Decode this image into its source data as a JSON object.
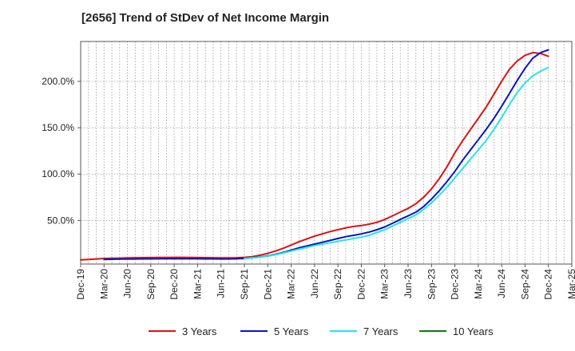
{
  "title": "[2656]  Trend of StDev of Net Income Margin",
  "colors": {
    "3y": "#dd1111",
    "5y": "#0a14c8",
    "7y": "#22e5ee",
    "10y": "#117711",
    "grid": "#999999",
    "axis": "#555555"
  },
  "chart_data": {
    "type": "line",
    "title": "[2656]  Trend of StDev of Net Income Margin",
    "xlabel": "",
    "ylabel": "",
    "x_ticks": [
      "Dec-19",
      "Mar-20",
      "Jun-20",
      "Sep-20",
      "Dec-20",
      "Mar-21",
      "Jun-21",
      "Sep-21",
      "Dec-21",
      "Mar-22",
      "Jun-22",
      "Sep-22",
      "Dec-22",
      "Mar-23",
      "Jun-23",
      "Sep-23",
      "Dec-23",
      "Mar-24",
      "Jun-24",
      "Sep-24",
      "Dec-24",
      "Mar-25"
    ],
    "y_ticks": [
      "50.0%",
      "100.0%",
      "150.0%",
      "200.0%"
    ],
    "y_tick_values": [
      50,
      100,
      150,
      200
    ],
    "ylim": [
      3,
      243
    ],
    "xlim": [
      "Dec-19",
      "Mar-25"
    ],
    "grid": true,
    "legend_position": "bottom",
    "series": [
      {
        "name": "3 Years",
        "color_key": "3y",
        "x": [
          "Dec-19",
          "Jan-20",
          "Feb-20",
          "Mar-20",
          "Apr-20",
          "May-20",
          "Jun-20",
          "Jul-20",
          "Aug-20",
          "Sep-20",
          "Oct-20",
          "Nov-20",
          "Dec-20",
          "Jan-21",
          "Feb-21",
          "Mar-21",
          "Apr-21",
          "May-21",
          "Jun-21",
          "Jul-21",
          "Aug-21",
          "Sep-21",
          "Oct-21",
          "Nov-21",
          "Dec-21",
          "Jan-22",
          "Feb-22",
          "Mar-22",
          "Apr-22",
          "May-22",
          "Jun-22",
          "Jul-22",
          "Aug-22",
          "Sep-22",
          "Oct-22",
          "Nov-22",
          "Dec-22",
          "Jan-23",
          "Feb-23",
          "Mar-23",
          "Apr-23",
          "May-23",
          "Jun-23",
          "Jul-23",
          "Aug-23",
          "Sep-23",
          "Oct-23",
          "Nov-23",
          "Dec-23",
          "Jan-24",
          "Feb-24",
          "Mar-24",
          "Apr-24",
          "May-24",
          "Jun-24",
          "Jul-24",
          "Aug-24",
          "Sep-24",
          "Oct-24",
          "Nov-24",
          "Dec-24"
        ],
        "values": [
          7.5,
          8.0,
          8.5,
          9.0,
          9.2,
          9.4,
          9.6,
          9.8,
          9.9,
          10.0,
          10.1,
          10.1,
          10.2,
          10.2,
          10.1,
          10.0,
          9.9,
          9.8,
          9.7,
          9.7,
          9.8,
          10.2,
          11.0,
          12.5,
          14.5,
          17.0,
          20.0,
          23.5,
          27.0,
          30.0,
          33.0,
          35.5,
          38.0,
          40.0,
          42.0,
          43.5,
          44.5,
          46.0,
          48.0,
          51.0,
          55.0,
          59.0,
          63.0,
          68.0,
          75.0,
          84.0,
          95.0,
          108.0,
          123.0,
          136.0,
          148.0,
          160.0,
          172.0,
          186.0,
          200.0,
          213.0,
          222.0,
          228.0,
          231.0,
          230.0,
          227.0
        ]
      },
      {
        "name": "5 Years",
        "color_key": "5y",
        "x": [
          "Mar-20",
          "Apr-20",
          "May-20",
          "Jun-20",
          "Jul-20",
          "Aug-20",
          "Sep-20",
          "Oct-20",
          "Nov-20",
          "Dec-20",
          "Jan-21",
          "Feb-21",
          "Mar-21",
          "Apr-21",
          "May-21",
          "Jun-21",
          "Jul-21",
          "Aug-21",
          "Sep-21",
          "Oct-21",
          "Nov-21",
          "Dec-21",
          "Jan-22",
          "Feb-22",
          "Mar-22",
          "Apr-22",
          "May-22",
          "Jun-22",
          "Jul-22",
          "Aug-22",
          "Sep-22",
          "Oct-22",
          "Nov-22",
          "Dec-22",
          "Jan-23",
          "Feb-23",
          "Mar-23",
          "Apr-23",
          "May-23",
          "Jun-23",
          "Jul-23",
          "Aug-23",
          "Sep-23",
          "Oct-23",
          "Nov-23",
          "Dec-23",
          "Jan-24",
          "Feb-24",
          "Mar-24",
          "Apr-24",
          "May-24",
          "Jun-24",
          "Jul-24",
          "Aug-24",
          "Sep-24",
          "Oct-24",
          "Nov-24",
          "Dec-24"
        ],
        "values": [
          8.0,
          8.2,
          8.3,
          8.4,
          8.5,
          8.6,
          8.6,
          8.7,
          8.7,
          8.7,
          8.7,
          8.7,
          8.7,
          8.6,
          8.6,
          8.5,
          8.5,
          8.7,
          9.0,
          9.6,
          10.5,
          11.8,
          13.5,
          15.5,
          18.0,
          20.5,
          22.5,
          24.5,
          26.5,
          28.5,
          30.5,
          32.5,
          34.0,
          35.5,
          37.5,
          40.0,
          43.0,
          47.0,
          51.0,
          55.0,
          59.0,
          65.0,
          73.0,
          82.0,
          92.0,
          103.0,
          115.0,
          126.0,
          137.0,
          148.0,
          160.0,
          173.0,
          187.0,
          201.0,
          214.0,
          225.0,
          231.0,
          234.0
        ]
      },
      {
        "name": "7 Years",
        "color_key": "7y",
        "x": [
          "Sep-21",
          "Oct-21",
          "Nov-21",
          "Dec-21",
          "Jan-22",
          "Feb-22",
          "Mar-22",
          "Apr-22",
          "May-22",
          "Jun-22",
          "Jul-22",
          "Aug-22",
          "Sep-22",
          "Oct-22",
          "Nov-22",
          "Dec-22",
          "Jan-23",
          "Feb-23",
          "Mar-23",
          "Apr-23",
          "May-23",
          "Jun-23",
          "Jul-23",
          "Aug-23",
          "Sep-23",
          "Oct-23",
          "Nov-23",
          "Dec-23",
          "Jan-24",
          "Feb-24",
          "Mar-24",
          "Apr-24",
          "May-24",
          "Jun-24",
          "Jul-24",
          "Aug-24",
          "Sep-24",
          "Oct-24",
          "Nov-24",
          "Dec-24"
        ],
        "values": [
          9.0,
          9.6,
          10.4,
          11.5,
          13.0,
          15.0,
          17.0,
          19.0,
          21.0,
          23.0,
          24.5,
          26.0,
          27.5,
          29.0,
          30.5,
          32.0,
          34.0,
          37.0,
          40.0,
          44.0,
          48.0,
          52.0,
          56.0,
          62.0,
          69.0,
          77.0,
          86.0,
          96.0,
          106.0,
          116.0,
          126.0,
          136.0,
          148.0,
          161.0,
          175.0,
          188.0,
          198.0,
          206.0,
          211.0,
          215.0
        ]
      },
      {
        "name": "10 Years",
        "color_key": "10y",
        "x": [],
        "values": []
      }
    ]
  }
}
